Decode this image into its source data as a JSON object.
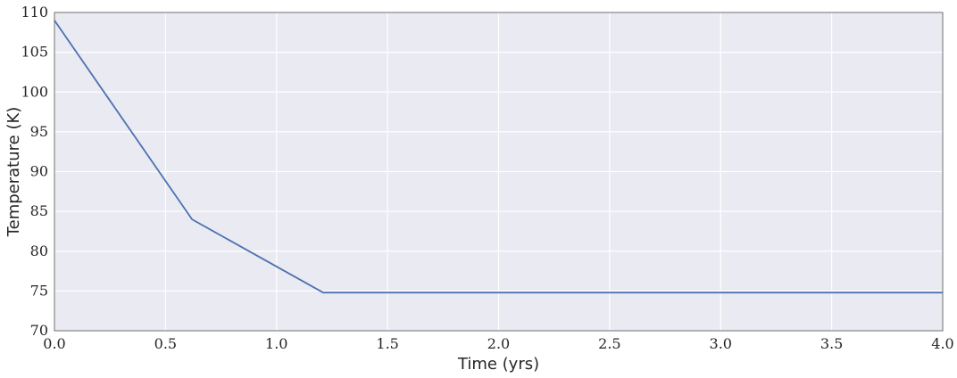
{
  "chart_data": {
    "type": "line",
    "xlabel": "Time (yrs)",
    "ylabel": "Temperature (K)",
    "xlim": [
      0.0,
      4.0
    ],
    "ylim": [
      70,
      110
    ],
    "x_ticks": [
      "0.0",
      "0.5",
      "1.0",
      "1.5",
      "2.0",
      "2.5",
      "3.0",
      "3.5",
      "4.0"
    ],
    "y_ticks": [
      "70",
      "75",
      "80",
      "85",
      "90",
      "95",
      "100",
      "105",
      "110"
    ],
    "grid": true,
    "background_color": "#eaeaf2",
    "series": [
      {
        "color": "#4c72b0",
        "x": [
          0.0,
          0.62,
          1.21,
          4.0
        ],
        "y": [
          109.0,
          84.0,
          74.8,
          74.8
        ]
      }
    ]
  }
}
